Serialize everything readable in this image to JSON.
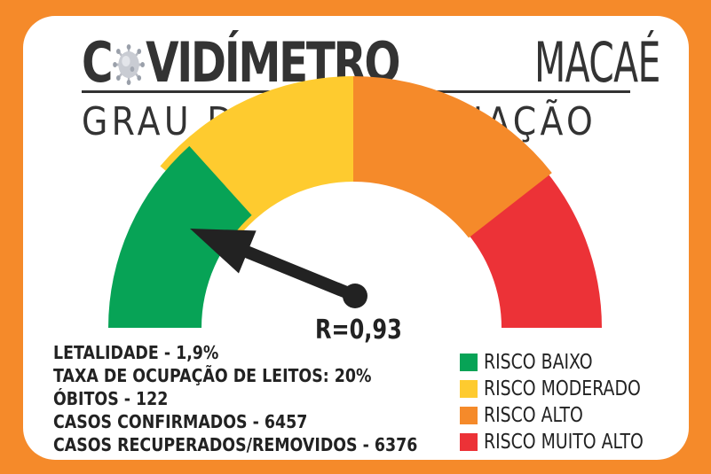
{
  "header": {
    "title_c": "C",
    "title_bold_rest": "VIDÍMETRO",
    "title_light": "MACAÉ",
    "virus_icon": "virus-icon",
    "subtitle": "GRAU DE CONTAMINAÇÃO"
  },
  "gauge": {
    "r_text": "R=0,93",
    "r_value": 0.93,
    "colors": {
      "low": "#07a356",
      "moderate": "#fecb2f",
      "high": "#f58a2a",
      "very_high": "#ec3237",
      "needle": "#222222"
    }
  },
  "stats": [
    {
      "text": "LETALIDADE - 1,9%"
    },
    {
      "text": "TAXA DE OCUPAÇÃO DE LEITOS: 20%"
    },
    {
      "text": "ÓBITOS - 122"
    },
    {
      "text": "CASOS CONFIRMADOS - 6457"
    },
    {
      "text": "CASOS RECUPERADOS/REMOVIDOS - 6376"
    }
  ],
  "legend": [
    {
      "label": "RISCO BAIXO",
      "color": "#07a356"
    },
    {
      "label": "RISCO MODERADO",
      "color": "#fecb2f"
    },
    {
      "label": "RISCO ALTO",
      "color": "#f58a2a"
    },
    {
      "label": "RISCO MUITO ALTO",
      "color": "#ec3237"
    }
  ]
}
